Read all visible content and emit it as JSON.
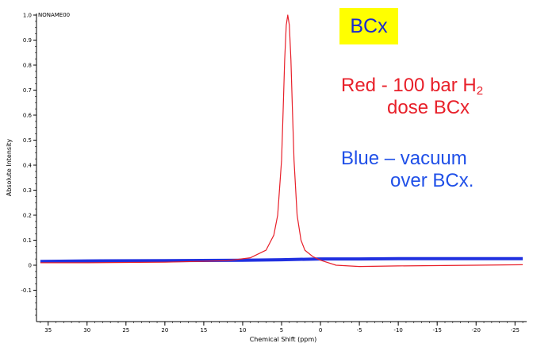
{
  "chart_data": {
    "type": "line",
    "spectrum_name": "NONAME00",
    "xlabel": "Chemical Shift (ppm)",
    "ylabel": "Absolute Intensity",
    "xlim": [
      36.5,
      -26.5
    ],
    "ylim": [
      -0.2,
      1.0
    ],
    "x_reversed": true,
    "x_ticks": [
      35,
      30,
      25,
      20,
      15,
      10,
      5,
      0,
      -5,
      -10,
      -15,
      -20,
      -25
    ],
    "y_ticks": [
      1.0,
      0.9,
      0.8,
      0.7,
      0.6,
      0.5,
      0.4,
      0.3,
      0.2,
      0.1,
      0,
      -0.1
    ],
    "y_tick_labels": [
      "1.0",
      "0.9",
      "0.8",
      "0.7",
      "0.6",
      "0.5",
      "0.4",
      "0.3",
      "0.2",
      "0.1",
      "0",
      "-0.1"
    ],
    "series": [
      {
        "color": "#e8202a",
        "x": [
          36,
          30,
          20,
          12,
          9,
          7,
          6,
          5.5,
          5,
          4.8,
          4.6,
          4.4,
          4.2,
          4.0,
          3.8,
          3.6,
          3.4,
          3.0,
          2.5,
          2,
          1,
          0,
          -2,
          -5,
          -10,
          -20,
          -26
        ],
        "y": [
          0.01,
          0.01,
          0.012,
          0.018,
          0.03,
          0.06,
          0.12,
          0.2,
          0.42,
          0.62,
          0.82,
          0.96,
          1.0,
          0.96,
          0.82,
          0.62,
          0.42,
          0.2,
          0.1,
          0.06,
          0.035,
          0.02,
          0.0,
          -0.005,
          -0.003,
          0.0,
          0.002
        ]
      },
      {
        "color": "#2030e0",
        "x": [
          36,
          30,
          20,
          10,
          5,
          0,
          -5,
          -10,
          -20,
          -26
        ],
        "y": [
          0.015,
          0.017,
          0.018,
          0.02,
          0.022,
          0.025,
          0.025,
          0.026,
          0.026,
          0.026
        ]
      }
    ]
  },
  "annotations": {
    "badge": "BCx",
    "red_line1": "Red - 100 bar H",
    "red_sub": "2",
    "red_line2": "dose BCx",
    "blue_line1": "Blue – vacuum",
    "blue_line2": "over BCx."
  },
  "colors": {
    "badge_bg": "#ffff00",
    "badge_text": "#1a2ad0",
    "red_text": "#e8202a",
    "blue_text": "#2050e8"
  }
}
